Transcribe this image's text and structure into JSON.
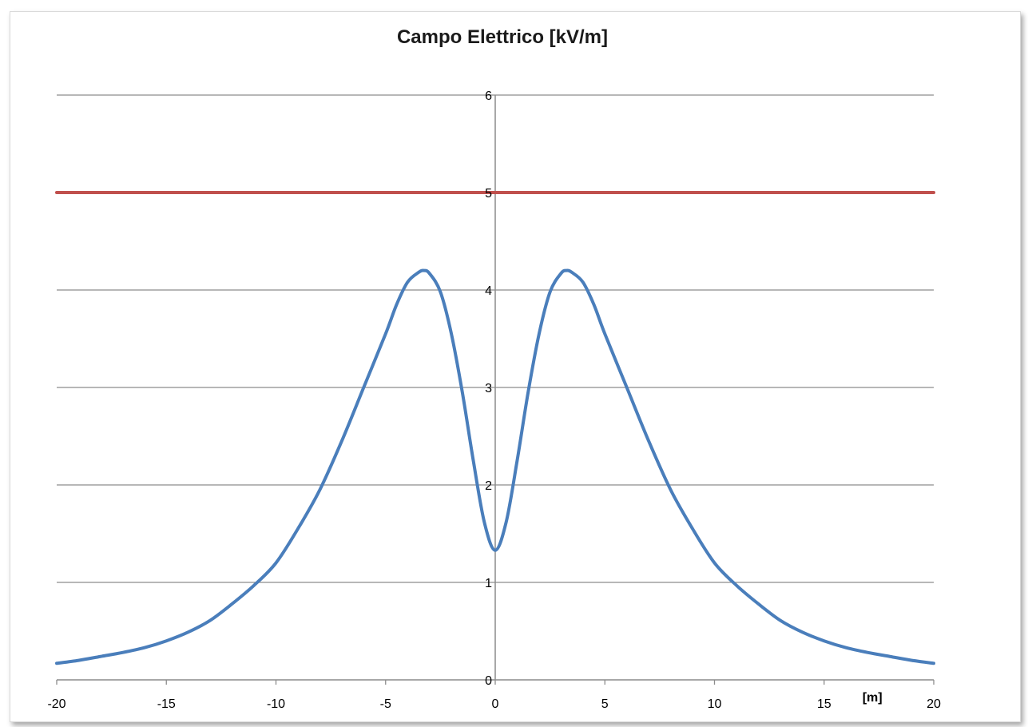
{
  "chart_data": {
    "type": "line",
    "title": "Campo Elettrico [kV/m]",
    "x_unit_label": "[m]",
    "xlim": [
      -20,
      20
    ],
    "ylim": [
      0,
      6
    ],
    "x_ticks": [
      -20,
      -15,
      -10,
      -5,
      0,
      5,
      10,
      15,
      20
    ],
    "y_ticks": [
      0,
      1,
      2,
      3,
      4,
      5,
      6
    ],
    "grid": "horizontal",
    "legend": "none",
    "series": [
      {
        "color": "#4a7ebb",
        "x": [
          -20,
          -19,
          -18,
          -17,
          -16,
          -15,
          -14,
          -13,
          -12,
          -11,
          -10,
          -9,
          -8,
          -7,
          -6,
          -5,
          -4.5,
          -4,
          -3.5,
          -3.25,
          -3,
          -2.5,
          -2,
          -1.5,
          -1,
          -0.5,
          0,
          0.5,
          1,
          1.5,
          2,
          2.5,
          3,
          3.25,
          3.5,
          4,
          4.5,
          5,
          6,
          7,
          8,
          9,
          10,
          11,
          12,
          13,
          14,
          15,
          16,
          17,
          18,
          19,
          20
        ],
        "y": [
          0.17,
          0.2,
          0.24,
          0.28,
          0.33,
          0.4,
          0.49,
          0.61,
          0.78,
          0.97,
          1.2,
          1.55,
          1.95,
          2.45,
          3.0,
          3.55,
          3.85,
          4.08,
          4.18,
          4.2,
          4.17,
          3.98,
          3.55,
          2.95,
          2.25,
          1.62,
          1.33,
          1.62,
          2.25,
          2.95,
          3.55,
          3.98,
          4.17,
          4.2,
          4.18,
          4.08,
          3.85,
          3.55,
          3.0,
          2.45,
          1.95,
          1.55,
          1.2,
          0.97,
          0.78,
          0.61,
          0.49,
          0.4,
          0.33,
          0.28,
          0.24,
          0.2,
          0.17
        ]
      },
      {
        "color": "#c0504d",
        "x": [
          -20,
          20
        ],
        "y": [
          5,
          5
        ]
      }
    ]
  }
}
